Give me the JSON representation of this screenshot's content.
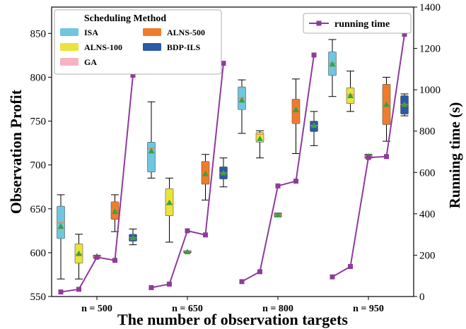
{
  "chart_data": {
    "type": "box+line",
    "categories": [
      "n = 500",
      "n = 650",
      "n = 800",
      "n = 950"
    ],
    "xlabel": "The number of observation targets",
    "ylabel_left": "Observation Profit",
    "ylabel_right": "Running time (s)",
    "ylim_left": [
      550,
      880
    ],
    "ylim_right": [
      0,
      1400
    ],
    "yticks_left": [
      550,
      600,
      650,
      700,
      750,
      800,
      850
    ],
    "yticks_right": [
      0,
      200,
      400,
      600,
      800,
      1000,
      1200,
      1400
    ],
    "legend_box": {
      "title": "Scheduling Method",
      "placement": "top-left",
      "entries": [
        {
          "name": "ISA",
          "color": "#6ec6e0"
        },
        {
          "name": "ALNS-500",
          "color": "#f07c2b"
        },
        {
          "name": "ALNS-100",
          "color": "#ebe33d"
        },
        {
          "name": "BDP-ILS",
          "color": "#2a59a8"
        },
        {
          "name": "GA",
          "color": "#f6b3c4"
        }
      ]
    },
    "legend_line": {
      "name": "running time",
      "placement": "top-right",
      "color": "#8e3b9b"
    },
    "methods_order": [
      "ISA",
      "ALNS-100",
      "GA",
      "ALNS-500",
      "BDP-ILS"
    ],
    "box_series": [
      {
        "name": "ISA",
        "color": "#6ec6e0",
        "boxes": [
          {
            "whislo": 570,
            "q1": 616,
            "med": 634,
            "q3": 653,
            "whishi": 666,
            "mean": 630
          },
          {
            "whislo": 685,
            "q1": 692,
            "med": 719,
            "q3": 726,
            "whishi": 772,
            "mean": 716
          },
          {
            "whislo": 736,
            "q1": 763,
            "med": 776,
            "q3": 789,
            "whishi": 797,
            "mean": 774
          },
          {
            "whislo": 778,
            "q1": 802,
            "med": 816,
            "q3": 829,
            "whishi": 843,
            "mean": 815
          }
        ]
      },
      {
        "name": "ALNS-100",
        "color": "#ebe33d",
        "boxes": [
          {
            "whislo": 570,
            "q1": 588,
            "med": 598,
            "q3": 610,
            "whishi": 621,
            "mean": 599
          },
          {
            "whislo": 612,
            "q1": 642,
            "med": 655,
            "q3": 673,
            "whishi": 685,
            "mean": 657
          },
          {
            "whislo": 708,
            "q1": 726,
            "med": 735,
            "q3": 737,
            "whishi": 739,
            "mean": 730
          },
          {
            "whislo": 761,
            "q1": 770,
            "med": 780,
            "q3": 788,
            "whishi": 807,
            "mean": 779
          }
        ]
      },
      {
        "name": "GA",
        "color": "#f6b3c4",
        "boxes": [
          {
            "whislo": 594,
            "q1": 595,
            "med": 596,
            "q3": 597,
            "whishi": 597,
            "mean": 596
          },
          {
            "whislo": 600,
            "q1": 601,
            "med": 601,
            "q3": 602,
            "whishi": 602,
            "mean": 601
          },
          {
            "whislo": 641,
            "q1": 642,
            "med": 643,
            "q3": 644,
            "whishi": 645,
            "mean": 643
          },
          {
            "whislo": 708,
            "q1": 709,
            "med": 710,
            "q3": 711,
            "whishi": 712,
            "mean": 710
          }
        ]
      },
      {
        "name": "ALNS-500",
        "color": "#f07c2b",
        "boxes": [
          {
            "whislo": 624,
            "q1": 638,
            "med": 650,
            "q3": 658,
            "whishi": 666,
            "mean": 647
          },
          {
            "whislo": 660,
            "q1": 678,
            "med": 690,
            "q3": 704,
            "whishi": 712,
            "mean": 690
          },
          {
            "whislo": 713,
            "q1": 747,
            "med": 764,
            "q3": 775,
            "whishi": 798,
            "mean": 763
          },
          {
            "whislo": 727,
            "q1": 746,
            "med": 770,
            "q3": 792,
            "whishi": 800,
            "mean": 769
          }
        ]
      },
      {
        "name": "BDP-ILS",
        "color": "#2a59a8",
        "boxes": [
          {
            "whislo": 609,
            "q1": 613,
            "med": 617,
            "q3": 621,
            "whishi": 627,
            "mean": 617
          },
          {
            "whislo": 675,
            "q1": 684,
            "med": 691,
            "q3": 698,
            "whishi": 708,
            "mean": 691
          },
          {
            "whislo": 722,
            "q1": 738,
            "med": 745,
            "q3": 750,
            "whishi": 761,
            "mean": 745
          },
          {
            "whislo": 756,
            "q1": 758,
            "med": 769,
            "q3": 779,
            "whishi": 781,
            "mean": 769
          }
        ]
      }
    ],
    "line_series": {
      "name": "running time",
      "color": "#8e3b9b",
      "points_per_category": [
        [
          22,
          35,
          190,
          175,
          1070
        ],
        [
          43,
          60,
          318,
          298,
          1128
        ],
        [
          72,
          120,
          535,
          558,
          1168
        ],
        [
          95,
          145,
          672,
          677,
          1268
        ]
      ]
    }
  }
}
